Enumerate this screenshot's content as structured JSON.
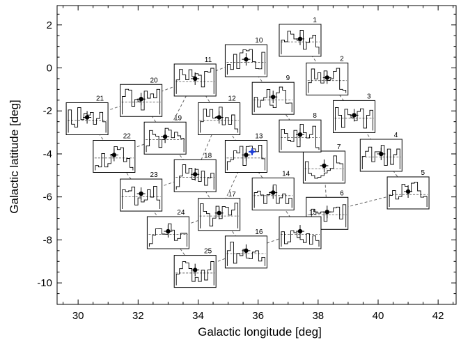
{
  "chart_data": {
    "type": "scatter",
    "xlabel": "Galactic longitude [deg]",
    "ylabel": "Galactic latitude [deg]",
    "xlim": [
      29.3,
      42.6
    ],
    "ylim": [
      -11.0,
      2.9
    ],
    "xticks": [
      30,
      32,
      34,
      36,
      38,
      40,
      42
    ],
    "yticks": [
      -10,
      -8,
      -6,
      -4,
      -2,
      0,
      2
    ],
    "grid": false,
    "points": [
      {
        "label": "1",
        "x": 37.4,
        "y": 1.35
      },
      {
        "label": "2",
        "x": 38.3,
        "y": -0.45
      },
      {
        "label": "3",
        "x": 39.2,
        "y": -2.2
      },
      {
        "label": "4",
        "x": 40.1,
        "y": -4.0
      },
      {
        "label": "5",
        "x": 41.0,
        "y": -5.75
      },
      {
        "label": "6",
        "x": 38.3,
        "y": -6.7
      },
      {
        "label": "7",
        "x": 38.2,
        "y": -4.55
      },
      {
        "label": "8",
        "x": 37.4,
        "y": -3.1
      },
      {
        "label": "9",
        "x": 36.5,
        "y": -1.35
      },
      {
        "label": "10",
        "x": 35.6,
        "y": 0.4
      },
      {
        "label": "11",
        "x": 33.9,
        "y": -0.5
      },
      {
        "label": "12",
        "x": 34.7,
        "y": -2.3
      },
      {
        "label": "13",
        "x": 35.6,
        "y": -4.05
      },
      {
        "label": "14",
        "x": 36.5,
        "y": -5.8
      },
      {
        "label": "15",
        "x": 37.4,
        "y": -7.6
      },
      {
        "label": "16",
        "x": 35.6,
        "y": -8.5
      },
      {
        "label": "17",
        "x": 34.7,
        "y": -6.75
      },
      {
        "label": "18",
        "x": 33.9,
        "y": -4.95
      },
      {
        "label": "19",
        "x": 32.9,
        "y": -3.2
      },
      {
        "label": "20",
        "x": 32.1,
        "y": -1.45
      },
      {
        "label": "21",
        "x": 30.3,
        "y": -2.3
      },
      {
        "label": "22",
        "x": 31.2,
        "y": -4.05
      },
      {
        "label": "23",
        "x": 32.1,
        "y": -5.85
      },
      {
        "label": "24",
        "x": 33.0,
        "y": -7.6
      },
      {
        "label": "25",
        "x": 33.9,
        "y": -9.4
      }
    ],
    "highlight_point": {
      "x": 35.8,
      "y": -3.9,
      "color": "#1f3fd6"
    },
    "dashed_tracks": [
      [
        "1",
        "2",
        "3",
        "4",
        "5",
        "6",
        "15",
        "16"
      ],
      [
        "10",
        "9",
        "8",
        "7",
        "6"
      ],
      [
        "21",
        "20",
        "10"
      ],
      [
        "22",
        "19",
        "11"
      ],
      [
        "23",
        "18",
        "12"
      ],
      [
        "24",
        "17",
        "13"
      ],
      [
        "25",
        "16"
      ],
      [
        "11",
        "12",
        "13",
        "14",
        "15"
      ],
      [
        "20",
        "19",
        "18",
        "17",
        "16"
      ],
      [
        "21",
        "22",
        "23",
        "24",
        "25"
      ]
    ],
    "colors": {
      "axis": "#000000",
      "marker": "#000000",
      "track": "#666666",
      "highlight": "#1f3fd6"
    }
  }
}
